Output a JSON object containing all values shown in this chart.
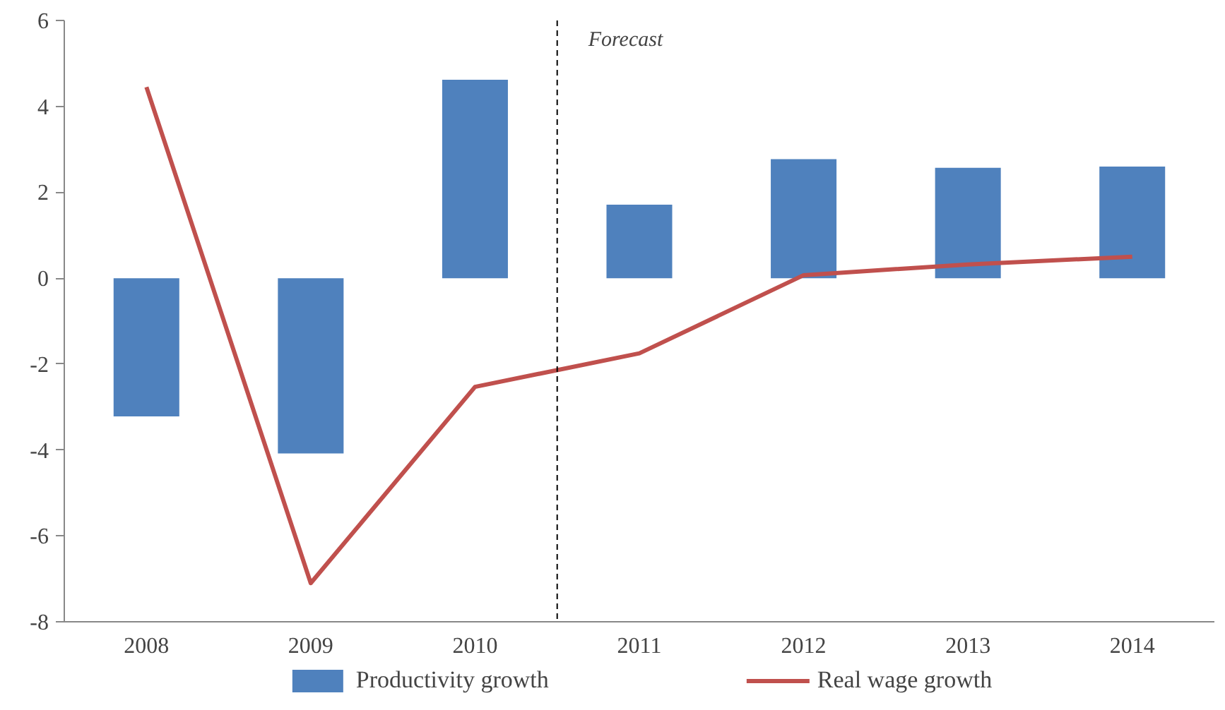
{
  "chart_data": {
    "type": "bar",
    "categories": [
      "2008",
      "2009",
      "2010",
      "2011",
      "2012",
      "2013",
      "2014"
    ],
    "series": [
      {
        "name": "Productivity growth",
        "color": "#4f81bd",
        "values": [
          -3.22,
          -4.08,
          4.62,
          1.71,
          2.77,
          2.57,
          2.6
        ]
      },
      {
        "name": "Real wage growth",
        "type": "line",
        "color": "#c0504d",
        "values": [
          4.45,
          -7.1,
          -2.53,
          -1.75,
          0.07,
          0.32,
          0.5
        ]
      }
    ],
    "ylim": [
      -8,
      6
    ],
    "yticks": [
      -8,
      -6,
      -4,
      -2,
      0,
      2,
      4,
      6
    ],
    "grid": false,
    "legend": "bottom",
    "annotations": [
      "Forecast"
    ]
  }
}
